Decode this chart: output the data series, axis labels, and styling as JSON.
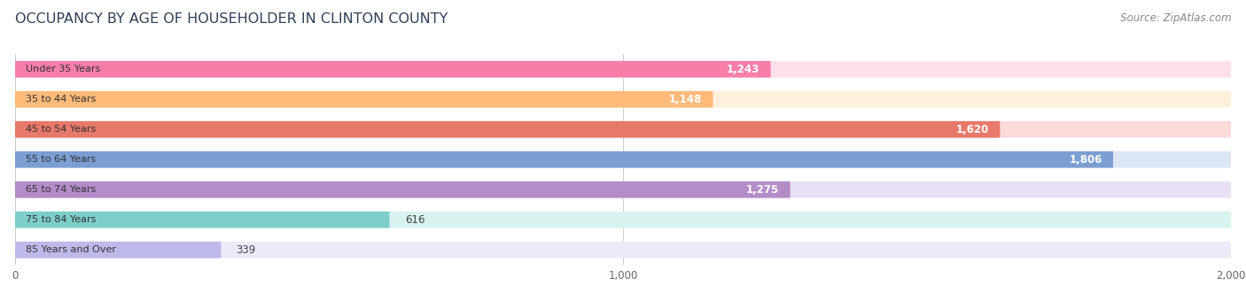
{
  "title": "OCCUPANCY BY AGE OF HOUSEHOLDER IN CLINTON COUNTY",
  "source": "Source: ZipAtlas.com",
  "categories": [
    "Under 35 Years",
    "35 to 44 Years",
    "45 to 54 Years",
    "55 to 64 Years",
    "65 to 74 Years",
    "75 to 84 Years",
    "85 Years and Over"
  ],
  "values": [
    1243,
    1148,
    1620,
    1806,
    1275,
    616,
    339
  ],
  "bar_colors": [
    "#F87EAA",
    "#FFBA7A",
    "#E8796A",
    "#7B9ED3",
    "#B48CC8",
    "#7DCECA",
    "#BDBAEA"
  ],
  "bar_bg_colors": [
    "#FDE0EA",
    "#FFF0DC",
    "#FADBD8",
    "#DCE6F5",
    "#EAE0F5",
    "#D8F2F0",
    "#ECEAF8"
  ],
  "xlim": [
    0,
    2000
  ],
  "xticks": [
    0,
    1000,
    2000
  ],
  "xticklabels": [
    "0",
    "1,000",
    "2,000"
  ],
  "title_color": "#2E4057",
  "title_fontsize": 11.5,
  "source_fontsize": 8.5,
  "bar_height": 0.55,
  "label_fontsize": 8.5,
  "cat_fontsize": 8.0,
  "background_color": "#ffffff",
  "grid_color": "#cccccc",
  "inside_label_threshold": 700
}
